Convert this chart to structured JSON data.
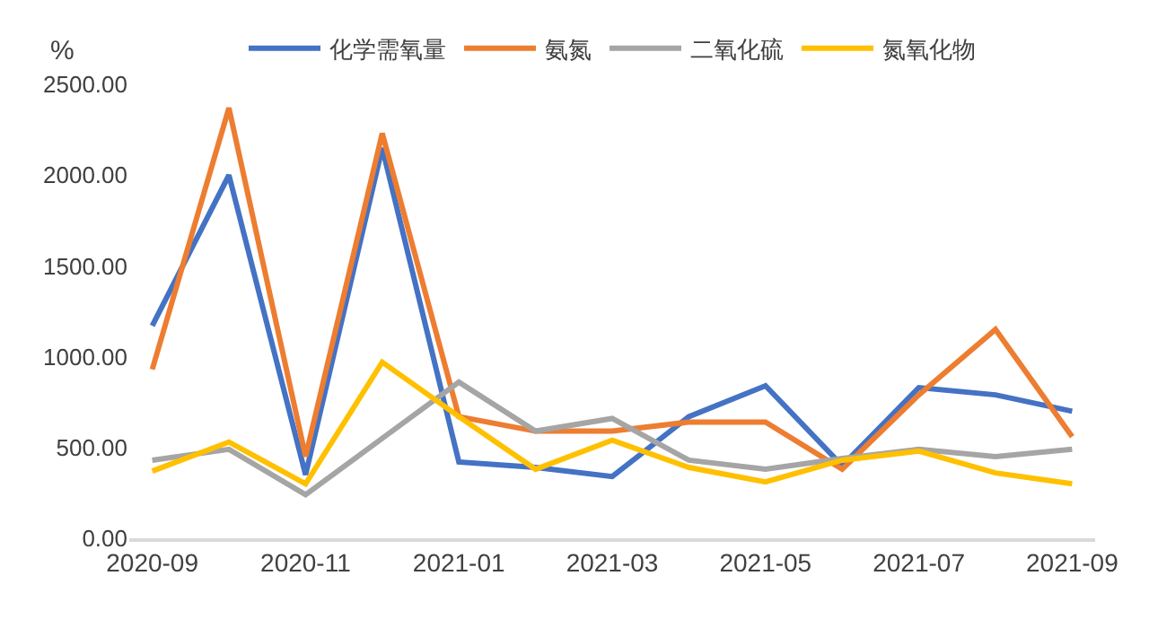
{
  "chart_data": {
    "type": "line",
    "ylabel": "%",
    "categories": [
      "2020-09",
      null,
      "2020-11",
      null,
      "2021-01",
      null,
      "2021-03",
      null,
      "2021-05",
      null,
      "2021-07",
      null,
      "2021-09"
    ],
    "series": [
      {
        "name": "化学需氧量",
        "color": "#4472c4",
        "values": [
          1170,
          2000,
          350,
          2150,
          420,
          390,
          340,
          670,
          840,
          400,
          830,
          790,
          700
        ]
      },
      {
        "name": "氨氮",
        "color": "#ed7d31",
        "values": [
          930,
          2370,
          450,
          2230,
          670,
          590,
          590,
          640,
          640,
          380,
          790,
          1150,
          560
        ]
      },
      {
        "name": "二氧化硫",
        "color": "#a5a5a5",
        "values": [
          430,
          490,
          240,
          550,
          860,
          590,
          660,
          430,
          380,
          440,
          490,
          450,
          490
        ]
      },
      {
        "name": "氮氧化物",
        "color": "#ffc000",
        "values": [
          370,
          530,
          300,
          970,
          670,
          380,
          540,
          390,
          310,
          430,
          480,
          360,
          300
        ]
      }
    ],
    "ylim": [
      0,
      2500
    ],
    "yticks": [
      {
        "value": 0,
        "label": "0.00"
      },
      {
        "value": 500,
        "label": "500.00"
      },
      {
        "value": 1000,
        "label": "1000.00"
      },
      {
        "value": 1500,
        "label": "1500.00"
      },
      {
        "value": 2000,
        "label": "2000.00"
      },
      {
        "value": 2500,
        "label": "2500.00"
      }
    ],
    "grid": false,
    "legend": "top",
    "marker": "none",
    "line_style": "solid"
  }
}
